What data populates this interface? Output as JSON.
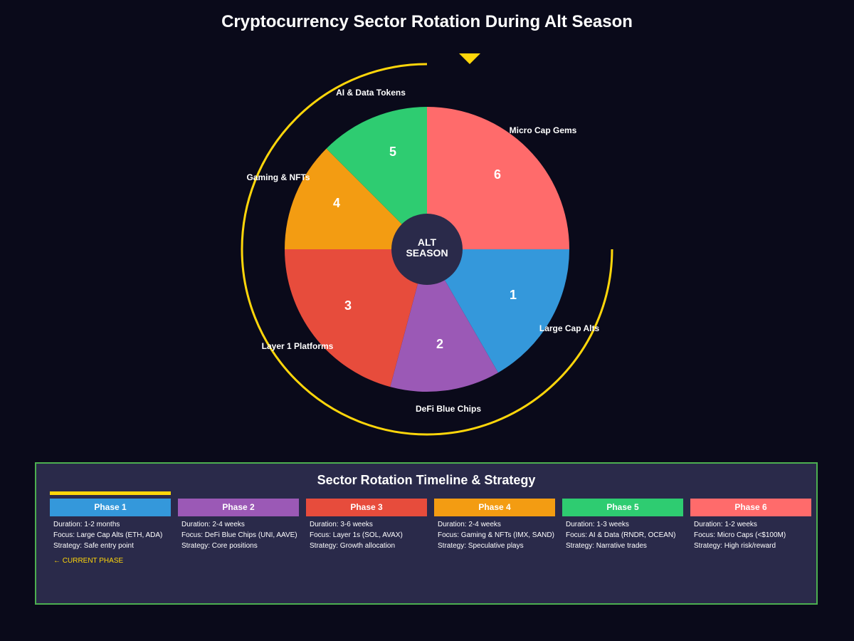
{
  "title": "Cryptocurrency Sector Rotation During Alt Season",
  "center": {
    "line1": "ALT",
    "line2": "SEASON"
  },
  "colors": {
    "background": "#0a0a1a",
    "ring": "#ffd60a",
    "center": "#2a2a4a",
    "panel": "#2a2a4a",
    "panel_border": "#4caf50"
  },
  "segments": [
    {
      "number": "1",
      "label": "Large Cap Alts",
      "color": "#3498db"
    },
    {
      "number": "2",
      "label": "DeFi Blue Chips",
      "color": "#9b59b6"
    },
    {
      "number": "3",
      "label": "Layer 1 Platforms",
      "color": "#e74c3c"
    },
    {
      "number": "4",
      "label": "Gaming & NFTs",
      "color": "#f39c12"
    },
    {
      "number": "5",
      "label": "AI & Data Tokens",
      "color": "#2ecc71"
    },
    {
      "number": "6",
      "label": "Micro Cap Gems",
      "color": "#ff6b6b"
    }
  ],
  "timeline": {
    "title": "Sector Rotation Timeline & Strategy",
    "current_label": "← CURRENT PHASE",
    "phases": [
      {
        "name": "Phase 1",
        "color": "#3498db",
        "duration": "Duration: 1-2 months",
        "focus": "Focus: Large Cap Alts (ETH, ADA)",
        "strategy": "Strategy: Safe entry point",
        "current": true
      },
      {
        "name": "Phase 2",
        "color": "#9b59b6",
        "duration": "Duration: 2-4 weeks",
        "focus": "Focus: DeFi Blue Chips (UNI, AAVE)",
        "strategy": "Strategy: Core positions",
        "current": false
      },
      {
        "name": "Phase 3",
        "color": "#e74c3c",
        "duration": "Duration: 3-6 weeks",
        "focus": "Focus: Layer 1s (SOL, AVAX)",
        "strategy": "Strategy: Growth allocation",
        "current": false
      },
      {
        "name": "Phase 4",
        "color": "#f39c12",
        "duration": "Duration: 2-4 weeks",
        "focus": "Focus: Gaming & NFTs (IMX, SAND)",
        "strategy": "Strategy: Speculative plays",
        "current": false
      },
      {
        "name": "Phase 5",
        "color": "#2ecc71",
        "duration": "Duration: 1-3 weeks",
        "focus": "Focus: AI & Data (RNDR, OCEAN)",
        "strategy": "Strategy: Narrative trades",
        "current": false
      },
      {
        "name": "Phase 6",
        "color": "#ff6b6b",
        "duration": "Duration: 1-2 weeks",
        "focus": "Focus: Micro Caps (<$100M)",
        "strategy": "Strategy: High risk/reward",
        "current": false
      }
    ]
  }
}
